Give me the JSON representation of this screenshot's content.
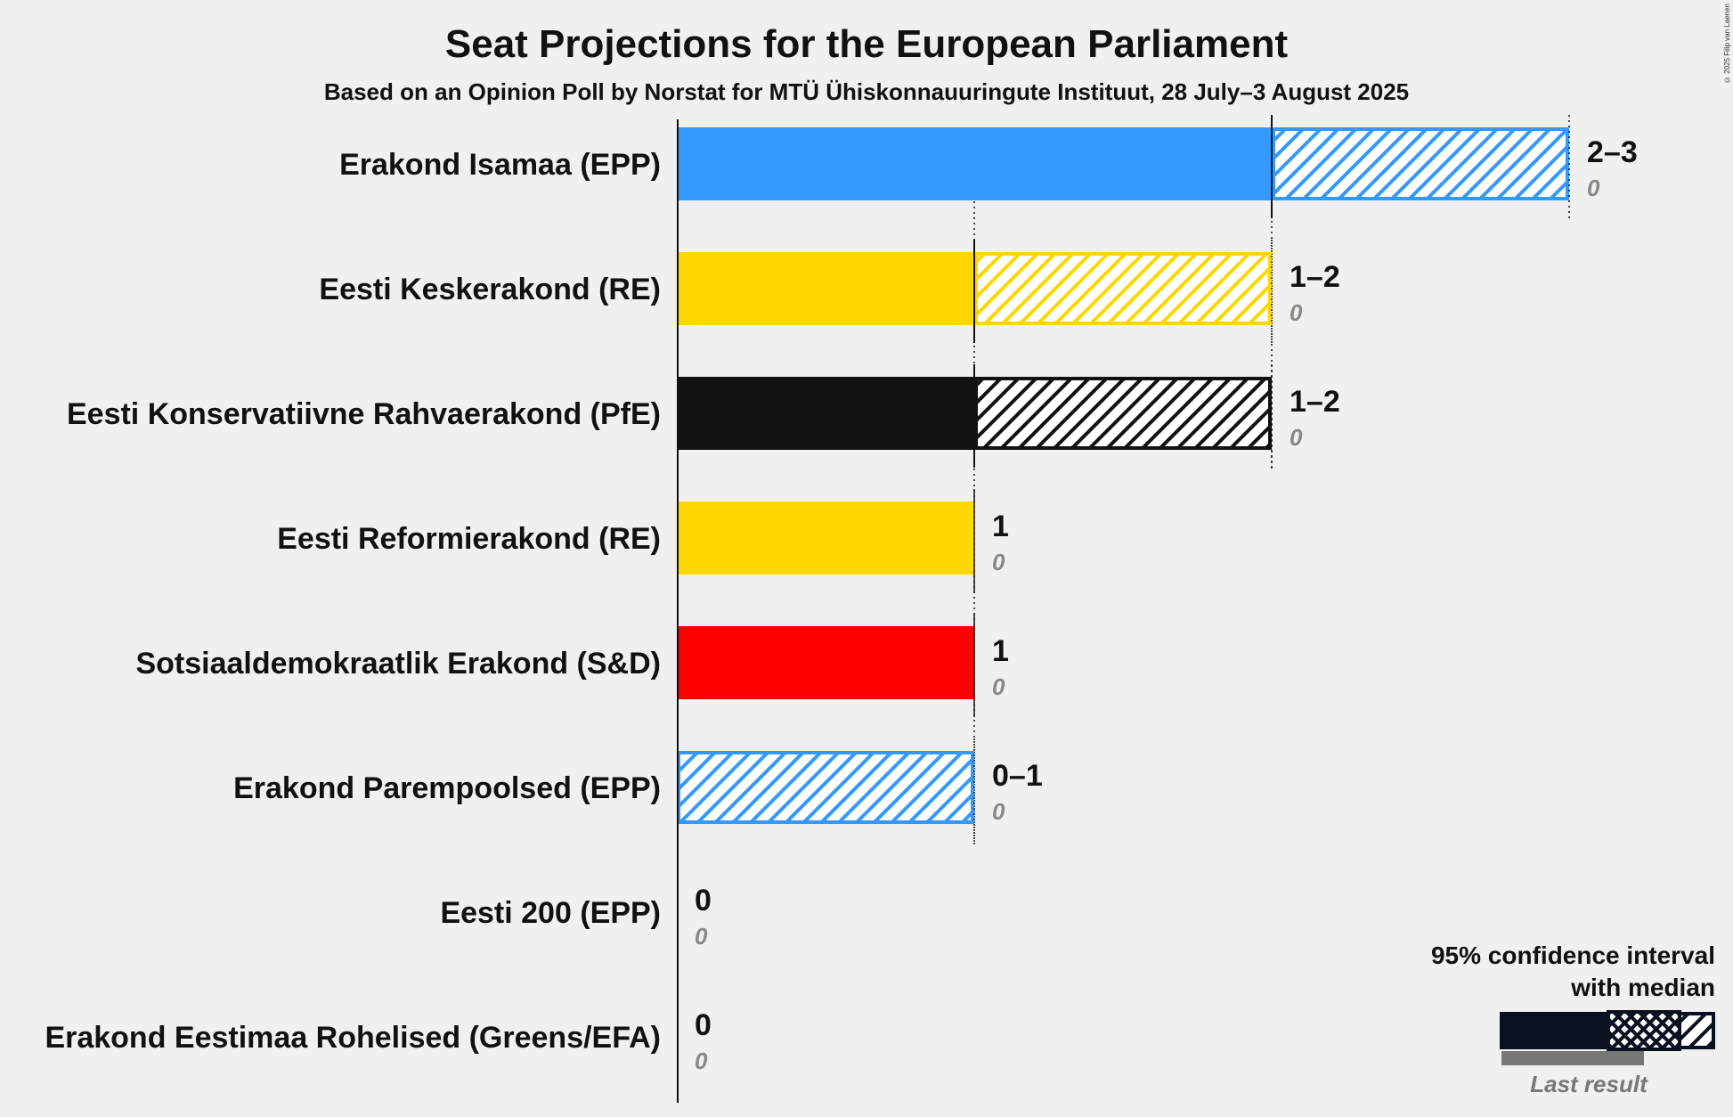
{
  "chart_data": {
    "type": "bar",
    "title": "Seat Projections for the European Parliament",
    "subtitle": "Based on an Opinion Poll by Norstat for MTÜ Ühiskonnauuringute Instituut, 28 July–3 August 2025",
    "copyright": "© 2025 Filip van Laenen",
    "categories": [
      "Erakond Isamaa (EPP)",
      "Eesti Keskerakond (RE)",
      "Eesti Konservatiivne Rahvaerakond (PfE)",
      "Eesti Reformierakond (RE)",
      "Sotsiaaldemokraatlik Erakond (S&D)",
      "Erakond Parempoolsed (EPP)",
      "Eesti 200 (EPP)",
      "Erakond Eestimaa Rohelised (Greens/EFA)"
    ],
    "series": [
      {
        "party": "Erakond Isamaa (EPP)",
        "low": 2,
        "median": 2,
        "high": 3,
        "label": "2–3",
        "last_result": 0,
        "last_label": "0",
        "color": "#3399FF"
      },
      {
        "party": "Eesti Keskerakond (RE)",
        "low": 1,
        "median": 1,
        "high": 2,
        "label": "1–2",
        "last_result": 0,
        "last_label": "0",
        "color": "#FFD700"
      },
      {
        "party": "Eesti Konservatiivne Rahvaerakond (PfE)",
        "low": 1,
        "median": 1,
        "high": 2,
        "label": "1–2",
        "last_result": 0,
        "last_label": "0",
        "color": "#111111"
      },
      {
        "party": "Eesti Reformierakond (RE)",
        "low": 1,
        "median": 1,
        "high": 1,
        "label": "1",
        "last_result": 0,
        "last_label": "0",
        "color": "#FFD700"
      },
      {
        "party": "Sotsiaaldemokraatlik Erakond (S&D)",
        "low": 1,
        "median": 1,
        "high": 1,
        "label": "1",
        "last_result": 0,
        "last_label": "0",
        "color": "#FF0000"
      },
      {
        "party": "Erakond Parempoolsed (EPP)",
        "low": 0,
        "median": 0,
        "high": 1,
        "label": "0–1",
        "last_result": 0,
        "last_label": "0",
        "color": "#3399FF"
      },
      {
        "party": "Eesti 200 (EPP)",
        "low": 0,
        "median": 0,
        "high": 0,
        "label": "0",
        "last_result": 0,
        "last_label": "0",
        "color": "#3399FF"
      },
      {
        "party": "Erakond Eestimaa Rohelised (Greens/EFA)",
        "low": 0,
        "median": 0,
        "high": 0,
        "label": "0",
        "last_result": 0,
        "last_label": "0",
        "color": "#33AA33"
      }
    ],
    "xlim": [
      0,
      3
    ],
    "legend": {
      "position": "bottom-right",
      "title_line1": "95% confidence interval",
      "title_line2": "with median",
      "last_result_label": "Last result"
    }
  }
}
